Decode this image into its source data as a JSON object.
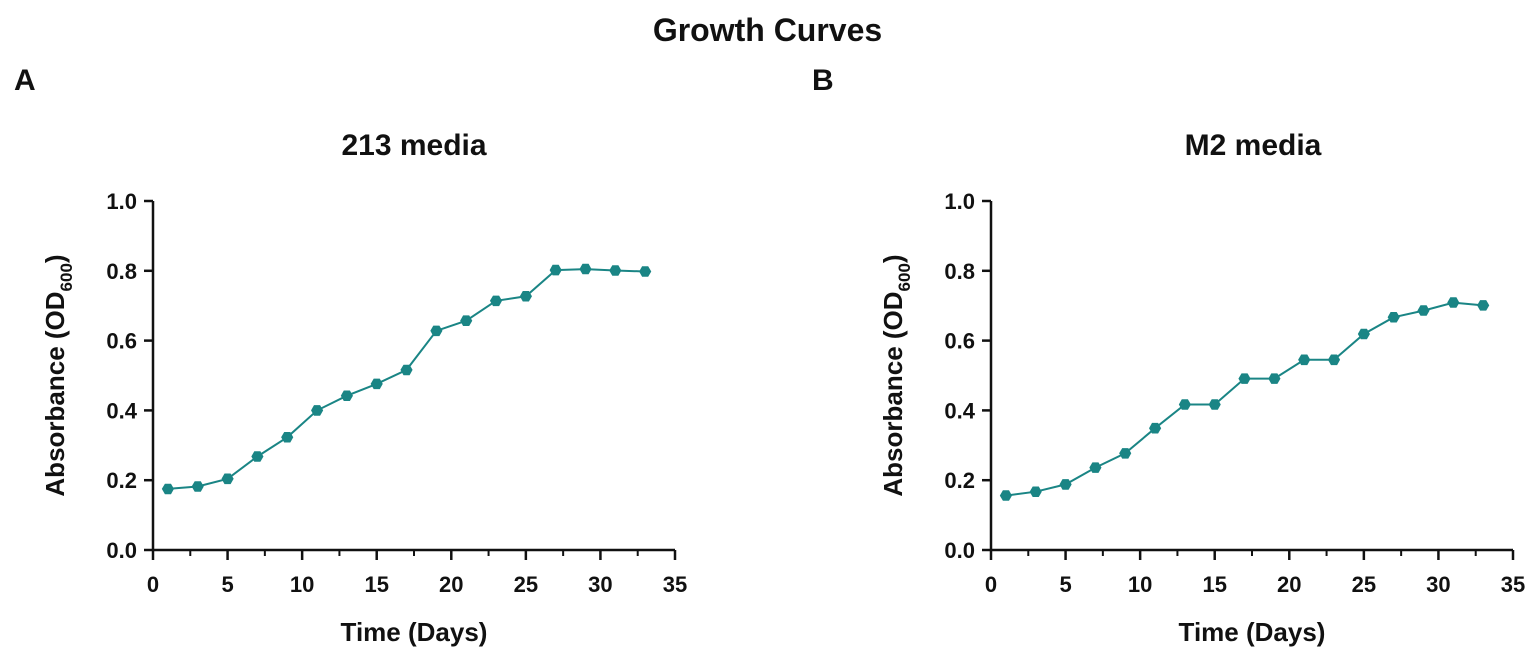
{
  "figure": {
    "title": "Growth Curves",
    "line_color": "#1a8585",
    "axis_color": "#111111"
  },
  "chart_data": [
    {
      "type": "line",
      "panel": "A",
      "title": "213 media",
      "xlabel": "Time (Days)",
      "ylabel_main": "Absorbance (OD",
      "ylabel_sub": "600",
      "ylabel_close": ")",
      "xlim": [
        0,
        35
      ],
      "ylim": [
        0,
        1.0
      ],
      "xticks": [
        0,
        5,
        10,
        15,
        20,
        25,
        30,
        35
      ],
      "xtick_labels": [
        "0",
        "5",
        "10",
        "15",
        "20",
        "25",
        "30",
        "35"
      ],
      "yticks": [
        0,
        0.2,
        0.4,
        0.6,
        0.8,
        1.0
      ],
      "ytick_labels": [
        "0.0",
        "0.2",
        "0.4",
        "0.6",
        "0.8",
        "1.0"
      ],
      "grid": false,
      "series": [
        {
          "name": "213 media",
          "x": [
            1,
            3,
            5,
            7,
            9,
            11,
            13,
            15,
            17,
            19,
            21,
            23,
            25,
            27,
            29,
            31,
            33
          ],
          "y": [
            0.175,
            0.182,
            0.204,
            0.268,
            0.323,
            0.4,
            0.442,
            0.476,
            0.516,
            0.628,
            0.657,
            0.714,
            0.727,
            0.802,
            0.805,
            0.801,
            0.798
          ]
        }
      ]
    },
    {
      "type": "line",
      "panel": "B",
      "title": "M2 media",
      "xlabel": "Time (Days)",
      "ylabel_main": "Absorbance (OD",
      "ylabel_sub": "600",
      "ylabel_close": ")",
      "xlim": [
        0,
        35
      ],
      "ylim": [
        0,
        1.0
      ],
      "xticks": [
        0,
        5,
        10,
        15,
        20,
        25,
        30,
        35
      ],
      "xtick_labels": [
        "0",
        "5",
        "10",
        "15",
        "20",
        "25",
        "30",
        "35"
      ],
      "yticks": [
        0,
        0.2,
        0.4,
        0.6,
        0.8,
        1.0
      ],
      "ytick_labels": [
        "0.0",
        "0.2",
        "0.4",
        "0.6",
        "0.8",
        "1.0"
      ],
      "grid": false,
      "series": [
        {
          "name": "M2 media",
          "x": [
            1,
            3,
            5,
            7,
            9,
            11,
            13,
            15,
            17,
            19,
            21,
            23,
            25,
            27,
            29,
            31,
            33
          ],
          "y": [
            0.156,
            0.167,
            0.188,
            0.236,
            0.277,
            0.349,
            0.417,
            0.417,
            0.491,
            0.491,
            0.545,
            0.545,
            0.619,
            0.667,
            0.686,
            0.709,
            0.701
          ]
        }
      ]
    }
  ]
}
